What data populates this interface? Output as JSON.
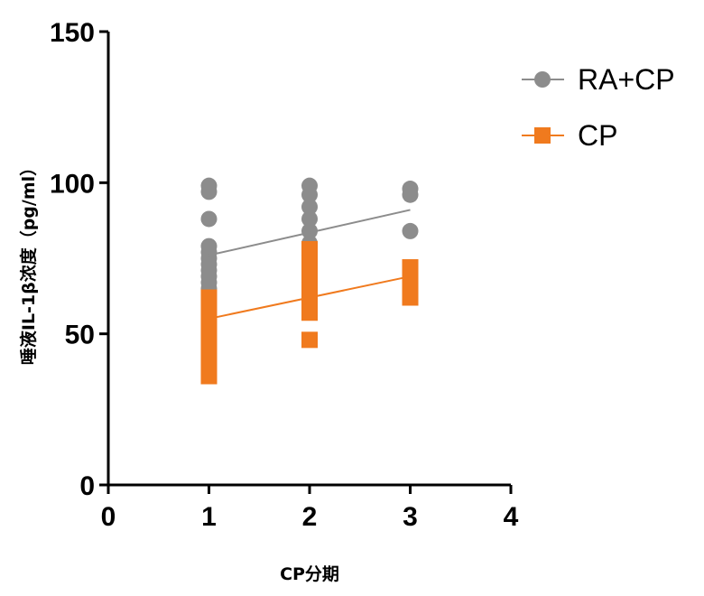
{
  "chart_data": {
    "type": "scatter",
    "xlabel": "CP分期",
    "ylabel": "唾液IL-1β浓度（pg/ml）",
    "xlim": [
      0,
      4
    ],
    "ylim": [
      0,
      150
    ],
    "x_ticks": [
      "0",
      "1",
      "2",
      "3",
      "4"
    ],
    "y_ticks": [
      "0",
      "50",
      "100",
      "150"
    ],
    "legend_position": "top-right",
    "series": [
      {
        "name": "RA+CP",
        "marker": "circle",
        "color": "#8c8c8c",
        "points": [
          [
            1,
            99
          ],
          [
            1,
            97
          ],
          [
            1,
            88
          ],
          [
            1,
            79
          ],
          [
            1,
            77
          ],
          [
            1,
            75
          ],
          [
            1,
            73
          ],
          [
            1,
            71
          ],
          [
            1,
            69
          ],
          [
            1,
            67
          ],
          [
            1,
            65
          ],
          [
            1,
            63
          ],
          [
            1,
            61
          ],
          [
            2,
            99
          ],
          [
            2,
            96
          ],
          [
            2,
            92
          ],
          [
            2,
            88
          ],
          [
            2,
            84
          ],
          [
            2,
            80
          ],
          [
            2,
            76
          ],
          [
            2,
            72
          ],
          [
            2,
            67
          ],
          [
            3,
            98
          ],
          [
            3,
            96
          ],
          [
            3,
            84
          ]
        ],
        "trendline": {
          "x": [
            1,
            3
          ],
          "y": [
            76,
            91
          ]
        }
      },
      {
        "name": "CP",
        "marker": "square",
        "color": "#f07a1e",
        "points": [
          [
            1,
            62
          ],
          [
            1,
            58
          ],
          [
            1,
            56
          ],
          [
            1,
            54
          ],
          [
            1,
            52
          ],
          [
            1,
            50
          ],
          [
            1,
            48
          ],
          [
            1,
            46
          ],
          [
            1,
            44
          ],
          [
            1,
            42
          ],
          [
            1,
            40
          ],
          [
            1,
            38
          ],
          [
            1,
            36
          ],
          [
            2,
            78
          ],
          [
            2,
            74
          ],
          [
            2,
            70
          ],
          [
            2,
            66
          ],
          [
            2,
            62
          ],
          [
            2,
            57
          ],
          [
            2,
            48
          ],
          [
            3,
            72
          ],
          [
            3,
            69
          ],
          [
            3,
            66
          ],
          [
            3,
            62
          ]
        ],
        "trendline": {
          "x": [
            1,
            3
          ],
          "y": [
            55,
            69
          ]
        }
      }
    ]
  }
}
